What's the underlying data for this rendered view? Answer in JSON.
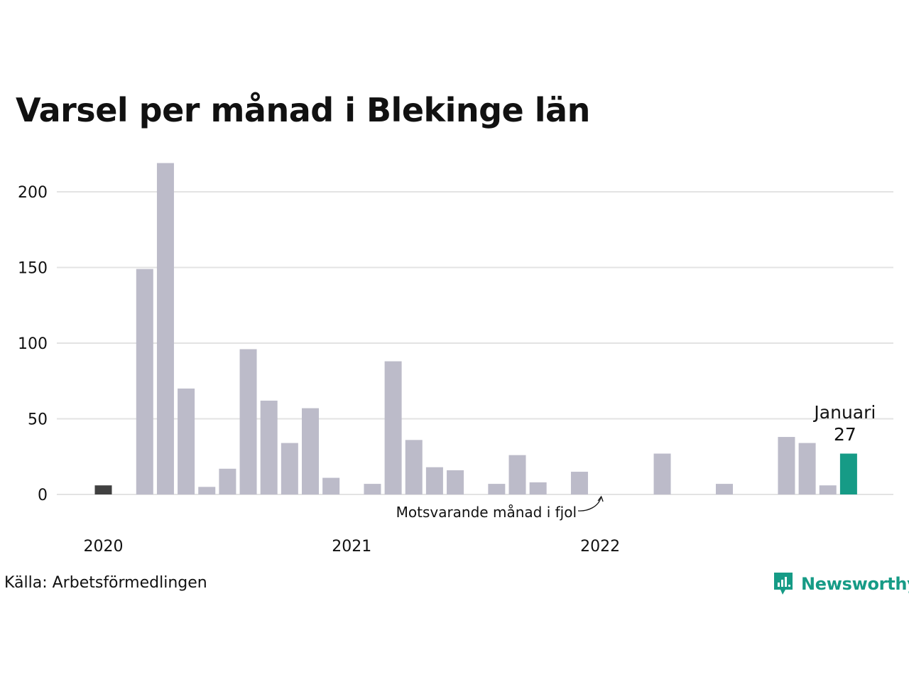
{
  "title": "Varsel per månad i Blekinge län",
  "source": "Källa: Arbetsförmedlingen",
  "brand": {
    "name": "Newsworthy",
    "icon": "newsworthy-logo-icon",
    "color": "#169b86"
  },
  "chart_data": {
    "type": "bar",
    "ylim": [
      0,
      220
    ],
    "yticks": [
      "0",
      "50",
      "100",
      "150",
      "200"
    ],
    "year_labels": [
      {
        "label": "2020",
        "index": 0
      },
      {
        "label": "2021",
        "index": 12
      },
      {
        "label": "2022",
        "index": 24
      }
    ],
    "months": [
      "2020-01",
      "2020-02",
      "2020-03",
      "2020-04",
      "2020-05",
      "2020-06",
      "2020-07",
      "2020-08",
      "2020-09",
      "2020-10",
      "2020-11",
      "2020-12",
      "2021-01",
      "2021-02",
      "2021-03",
      "2021-04",
      "2021-05",
      "2021-06",
      "2021-07",
      "2021-08",
      "2021-09",
      "2021-10",
      "2021-11",
      "2021-12",
      "2022-01",
      "2022-02",
      "2022-03",
      "2022-04",
      "2022-05",
      "2022-06",
      "2022-07",
      "2022-08",
      "2022-09",
      "2022-10",
      "2022-11",
      "2022-12",
      "2023-01"
    ],
    "values": [
      6,
      0,
      149,
      219,
      70,
      5,
      17,
      96,
      62,
      34,
      57,
      11,
      0,
      7,
      88,
      36,
      18,
      16,
      0,
      7,
      26,
      8,
      0,
      15,
      0,
      0,
      0,
      27,
      0,
      0,
      7,
      0,
      0,
      38,
      34,
      6,
      27
    ],
    "highlight_index": 0,
    "current_index": 36,
    "colors": {
      "default": "#bcbbc9",
      "highlight": "#404040",
      "current": "#169b86",
      "grid": "#e3e3e3"
    },
    "current_label": {
      "month": "Januari",
      "value": "27"
    },
    "annotation": {
      "text": "Motsvarande månad i fjol",
      "target_index": 24
    },
    "grid": true
  }
}
